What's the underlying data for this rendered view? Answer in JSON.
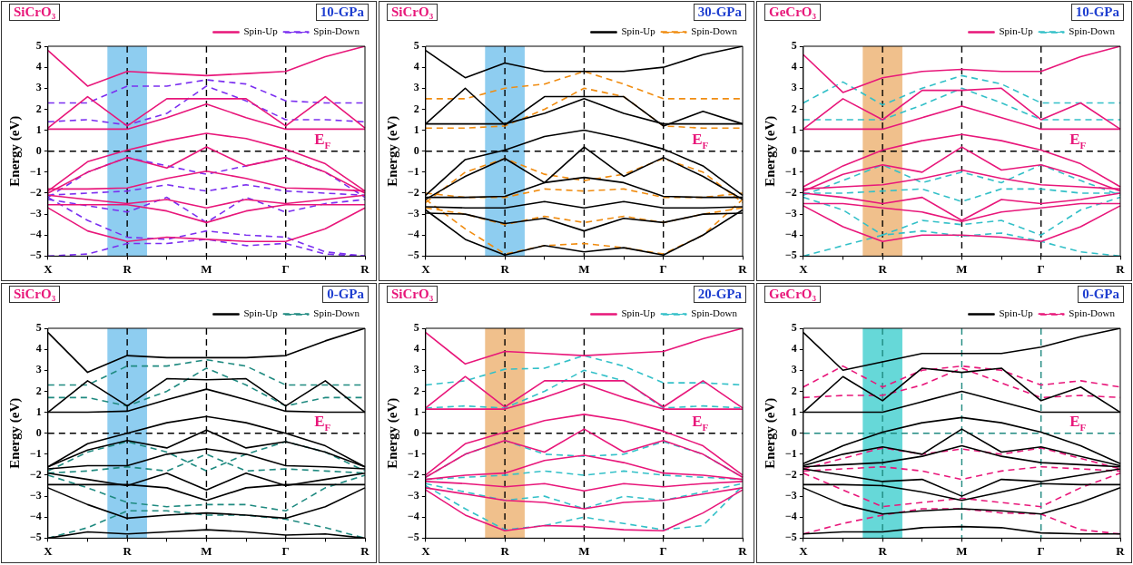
{
  "chart_data": [
    {
      "type": "line",
      "ylabel": "Energy (eV)",
      "categories": [
        "X",
        null,
        "R",
        null,
        "M",
        null,
        "Γ",
        null,
        "R"
      ],
      "ylim": [
        -5,
        5
      ],
      "yticks": [
        -5,
        -4,
        -3,
        -2,
        -1,
        0,
        1,
        2,
        3,
        4,
        5
      ],
      "legend": "top right",
      "annotations": [
        "SiCrO₃",
        "10-GPa",
        "E$_{F}$"
      ],
      "ref_lines": [
        {
          "axis": "y",
          "value": 0,
          "color": "#000000",
          "line_style": "dashed"
        },
        {
          "axis": "x",
          "value": "R",
          "color": "#000000",
          "line_style": "dashed"
        },
        {
          "axis": "x",
          "value": "M",
          "color": "#000000",
          "line_style": "dashed"
        },
        {
          "axis": "x",
          "value": "Γ",
          "color": "#000000",
          "line_style": "dashed"
        }
      ],
      "bands": [
        {
          "axis": "x",
          "from": "R",
          "to": "R",
          "color": "#8ecdf0"
        }
      ],
      "series": [
        {
          "name": "Spin-Up",
          "color": "#e8177a",
          "line_style": "solid",
          "values": [
            1.05,
            1.05,
            1.05,
            1.6,
            2.25,
            1.6,
            1.05,
            1.05,
            1.05
          ]
        },
        {
          "color": "#e8177a",
          "line_style": "solid",
          "values": [
            1.1,
            2.6,
            1.2,
            2.5,
            2.5,
            2.5,
            1.2,
            2.6,
            1.1
          ]
        },
        {
          "color": "#e8177a",
          "line_style": "solid",
          "values": [
            4.8,
            3.1,
            3.8,
            3.7,
            3.6,
            3.7,
            3.8,
            4.5,
            5
          ]
        },
        {
          "color": "#e8177a",
          "line_style": "solid",
          "values": [
            -1.9,
            -0.5,
            0.05,
            0.5,
            0.85,
            0.6,
            0.1,
            -0.6,
            -1.9
          ]
        },
        {
          "color": "#e8177a",
          "line_style": "solid",
          "values": [
            -2,
            -1,
            -0.3,
            -0.8,
            0.2,
            -0.7,
            -0.3,
            -1,
            -2
          ]
        },
        {
          "color": "#e8177a",
          "line_style": "solid",
          "values": [
            -1.8,
            -1.8,
            -1.75,
            -1.3,
            -0.95,
            -1.3,
            -1.75,
            -1.8,
            -1.9
          ]
        },
        {
          "color": "#e8177a",
          "line_style": "solid",
          "values": [
            -2.1,
            -2.3,
            -2.5,
            -2.3,
            -2.7,
            -2.3,
            -2.5,
            -2.3,
            -2.1
          ]
        },
        {
          "color": "#e8177a",
          "line_style": "solid",
          "values": [
            -2.55,
            -2.55,
            -2.55,
            -2.85,
            -3.4,
            -2.85,
            -2.55,
            -2.55,
            -2.55
          ]
        },
        {
          "color": "#e8177a",
          "line_style": "solid",
          "values": [
            -2.7,
            -3.8,
            -4.3,
            -4.1,
            -4.2,
            -4.3,
            -4.3,
            -3.7,
            -2.7
          ]
        },
        {
          "name": "Spin-Down",
          "color": "#7b2ff0",
          "line_style": "dashed",
          "values": [
            1.4,
            1.5,
            1.25,
            1.8,
            3.1,
            2.4,
            1.5,
            1.5,
            1.4
          ]
        },
        {
          "color": "#7b2ff0",
          "line_style": "dashed",
          "values": [
            2.3,
            2.3,
            3.1,
            3.1,
            3.4,
            3.2,
            2.4,
            2.3,
            2.3
          ]
        },
        {
          "color": "#7b2ff0",
          "line_style": "dashed",
          "values": [
            -2.2,
            -1,
            -0.3,
            -0.7,
            -1.1,
            -0.7,
            -0.3,
            -1,
            -2.2
          ]
        },
        {
          "color": "#7b2ff0",
          "line_style": "dashed",
          "values": [
            -2.1,
            -2,
            -1.9,
            -1.6,
            -1.9,
            -1.6,
            -1.9,
            -2,
            -2.1
          ]
        },
        {
          "color": "#7b2ff0",
          "line_style": "dashed",
          "values": [
            -2.3,
            -2.6,
            -2.9,
            -2.2,
            -3.4,
            -2.2,
            -2.9,
            -2.5,
            -2.3
          ]
        },
        {
          "color": "#7b2ff0",
          "line_style": "dashed",
          "values": [
            -2.2,
            -3.3,
            -4.1,
            -4.2,
            -3.8,
            -4,
            -4.1,
            -4.8,
            -5
          ]
        },
        {
          "color": "#7b2ff0",
          "line_style": "dashed",
          "values": [
            -5,
            -4.9,
            -4.4,
            -4.4,
            -4.2,
            -4.5,
            -4.4,
            -4.9,
            -5
          ]
        }
      ]
    },
    {
      "type": "line",
      "ylabel": "Energy (eV)",
      "categories": [
        "X",
        null,
        "R",
        null,
        "M",
        null,
        "Γ",
        null,
        "R"
      ],
      "ylim": [
        -5,
        5
      ],
      "yticks": [
        -5,
        -4,
        -3,
        -2,
        -1,
        0,
        1,
        2,
        3,
        4,
        5
      ],
      "legend": "top right",
      "annotations": [
        "SiCrO₃",
        "30-GPa",
        "E$_{F}$"
      ],
      "ref_lines": [
        {
          "axis": "y",
          "value": 0,
          "color": "#000000",
          "line_style": "dashed"
        },
        {
          "axis": "x",
          "value": "R",
          "color": "#000000",
          "line_style": "dashed"
        },
        {
          "axis": "x",
          "value": "M",
          "color": "#000000",
          "line_style": "dashed"
        },
        {
          "axis": "x",
          "value": "Γ",
          "color": "#000000",
          "line_style": "dashed"
        }
      ],
      "bands": [
        {
          "axis": "x",
          "from": "R",
          "to": "R",
          "color": "#8ecdf0"
        }
      ],
      "series": [
        {
          "name": "Spin-Up",
          "color": "#000000",
          "line_style": "solid",
          "values": [
            1.3,
            1.3,
            1.3,
            1.8,
            2.5,
            1.8,
            1.3,
            1.3,
            1.3
          ]
        },
        {
          "color": "#000000",
          "line_style": "solid",
          "values": [
            1.3,
            3,
            1.25,
            2.6,
            2.6,
            2.6,
            1.2,
            1.9,
            1.3
          ]
        },
        {
          "color": "#000000",
          "line_style": "solid",
          "values": [
            4.8,
            3.5,
            4.2,
            3.8,
            3.8,
            3.8,
            4,
            4.6,
            5
          ]
        },
        {
          "color": "#000000",
          "line_style": "solid",
          "values": [
            -2.1,
            -0.4,
            0.05,
            0.7,
            1,
            0.6,
            0.1,
            -0.7,
            -2.1
          ]
        },
        {
          "color": "#000000",
          "line_style": "solid",
          "values": [
            -2.3,
            -1.2,
            -0.35,
            -1.5,
            0.2,
            -1.2,
            -0.3,
            -1.2,
            -2.3
          ]
        },
        {
          "color": "#000000",
          "line_style": "solid",
          "values": [
            -2.2,
            -2.2,
            -2.15,
            -1.5,
            -1.25,
            -1.5,
            -2.15,
            -2.2,
            -2.2
          ]
        },
        {
          "color": "#000000",
          "line_style": "solid",
          "values": [
            -2.65,
            -2.7,
            -2.7,
            -2.4,
            -2.7,
            -2.4,
            -2.7,
            -2.7,
            -2.65
          ]
        },
        {
          "color": "#000000",
          "line_style": "solid",
          "values": [
            -2.95,
            -3,
            -3.45,
            -3.2,
            -3.8,
            -3.2,
            -3.4,
            -3,
            -2.95
          ]
        },
        {
          "color": "#000000",
          "line_style": "solid",
          "values": [
            -2.8,
            -4.2,
            -4.95,
            -4.5,
            -4.8,
            -4.6,
            -4.95,
            -4,
            -2.8
          ]
        },
        {
          "name": "Spin-Down",
          "color": "#f08c10",
          "line_style": "dashed",
          "values": [
            1.1,
            1.1,
            1.2,
            2,
            3,
            2.6,
            1.2,
            1.1,
            1.1
          ]
        },
        {
          "color": "#f08c10",
          "line_style": "dashed",
          "values": [
            2.5,
            2.5,
            3,
            3.2,
            3.8,
            3.2,
            2.5,
            2.5,
            2.5
          ]
        },
        {
          "color": "#f08c10",
          "line_style": "dashed",
          "values": [
            -2.45,
            -1,
            -0.35,
            -1.1,
            -1.4,
            -1.1,
            -0.35,
            -1,
            -2.45
          ]
        },
        {
          "color": "#f08c10",
          "line_style": "dashed",
          "values": [
            -2,
            -2.2,
            -2.2,
            -1.8,
            -1.9,
            -1.8,
            -2.2,
            -2.2,
            -2
          ]
        },
        {
          "color": "#f08c10",
          "line_style": "dashed",
          "values": [
            -2.7,
            -3,
            -3.5,
            -3.1,
            -3.4,
            -3.1,
            -3.4,
            -3,
            -2.7
          ]
        },
        {
          "color": "#f08c10",
          "line_style": "dashed",
          "values": [
            -2.3,
            -3.7,
            -4.9,
            -4.5,
            -4.4,
            -4.6,
            -4.9,
            -4,
            -2.3
          ]
        }
      ]
    },
    {
      "type": "line",
      "ylabel": "Energy (eV)",
      "categories": [
        "X",
        null,
        "R",
        null,
        "M",
        null,
        "Γ",
        null,
        "R"
      ],
      "ylim": [
        -5,
        5
      ],
      "yticks": [
        -5,
        -4,
        -3,
        -2,
        -1,
        0,
        1,
        2,
        3,
        4,
        5
      ],
      "legend": "top right",
      "annotations": [
        "GeCrO₃",
        "10-GPa",
        "E$_{F}$"
      ],
      "ref_lines": [
        {
          "axis": "y",
          "value": 0,
          "color": "#000000",
          "line_style": "dashed"
        },
        {
          "axis": "x",
          "value": "R",
          "color": "#000000",
          "line_style": "dashed"
        },
        {
          "axis": "x",
          "value": "M",
          "color": "#000000",
          "line_style": "dashed"
        },
        {
          "axis": "x",
          "value": "Γ",
          "color": "#000000",
          "line_style": "dashed"
        }
      ],
      "bands": [
        {
          "axis": "x",
          "from": "R",
          "to": "R",
          "color": "#f0c08c"
        }
      ],
      "series": [
        {
          "name": "Spin-Up",
          "color": "#e8177a",
          "line_style": "solid",
          "values": [
            1.05,
            1.05,
            1.05,
            1.6,
            2.15,
            1.6,
            1.05,
            1.05,
            1.05
          ]
        },
        {
          "color": "#e8177a",
          "line_style": "solid",
          "values": [
            1.05,
            2.5,
            1.5,
            2.9,
            2.9,
            3,
            1.5,
            2.3,
            1.05
          ]
        },
        {
          "color": "#e8177a",
          "line_style": "solid",
          "values": [
            4.6,
            2.8,
            3.5,
            3.8,
            3.9,
            3.8,
            3.8,
            4.5,
            5
          ]
        },
        {
          "color": "#e8177a",
          "line_style": "solid",
          "values": [
            -1.7,
            -0.7,
            0.05,
            0.5,
            0.8,
            0.5,
            0.05,
            -0.6,
            -1.7
          ]
        },
        {
          "color": "#e8177a",
          "line_style": "solid",
          "values": [
            -1.9,
            -1.1,
            -0.65,
            -1,
            0.2,
            -0.9,
            -0.65,
            -1.2,
            -1.9
          ]
        },
        {
          "color": "#e8177a",
          "line_style": "solid",
          "values": [
            -1.8,
            -1.7,
            -1.6,
            -1.3,
            -0.9,
            -1.3,
            -1.6,
            -1.7,
            -1.8
          ]
        },
        {
          "color": "#e8177a",
          "line_style": "solid",
          "values": [
            -2,
            -2.2,
            -2.5,
            -2.2,
            -3.3,
            -2.3,
            -2.5,
            -2.3,
            -2
          ]
        },
        {
          "color": "#e8177a",
          "line_style": "solid",
          "values": [
            -2.5,
            -2.5,
            -2.7,
            -2.9,
            -3.35,
            -2.9,
            -2.7,
            -2.5,
            -2.5
          ]
        },
        {
          "color": "#e8177a",
          "line_style": "solid",
          "values": [
            -2.6,
            -3.6,
            -4.3,
            -4,
            -4,
            -4.1,
            -4.3,
            -3.6,
            -2.6
          ]
        },
        {
          "name": "Spin-Down",
          "color": "#33c0c8",
          "line_style": "dashed",
          "values": [
            1.5,
            1.5,
            1.5,
            2.2,
            3,
            2.3,
            1.5,
            1.5,
            1.5
          ]
        },
        {
          "color": "#33c0c8",
          "line_style": "dashed",
          "values": [
            2.3,
            3.3,
            2.2,
            3,
            3.6,
            3.2,
            2.3,
            2.3,
            2.3
          ]
        },
        {
          "color": "#33c0c8",
          "line_style": "dashed",
          "values": [
            -2.1,
            -1.4,
            -0.65,
            -1.5,
            -1,
            -1.5,
            -0.65,
            -1.4,
            -2.1
          ]
        },
        {
          "color": "#33c0c8",
          "line_style": "dashed",
          "values": [
            -2,
            -2,
            -1.9,
            -1.8,
            -2.4,
            -1.8,
            -1.8,
            -2,
            -2
          ]
        },
        {
          "color": "#33c0c8",
          "line_style": "dashed",
          "values": [
            -2.2,
            -2.8,
            -4,
            -3.3,
            -3.5,
            -3.3,
            -4,
            -2.8,
            -2.2
          ]
        },
        {
          "color": "#33c0c8",
          "line_style": "dashed",
          "values": [
            -5,
            -4.5,
            -4,
            -3.8,
            -4.05,
            -3.9,
            -4.3,
            -4.8,
            -5
          ]
        }
      ]
    },
    {
      "type": "line",
      "ylabel": "Energy (eV)",
      "categories": [
        "X",
        null,
        "R",
        null,
        "M",
        null,
        "Γ",
        null,
        "R"
      ],
      "ylim": [
        -5,
        5
      ],
      "yticks": [
        -5,
        -4,
        -3,
        -2,
        -1,
        0,
        1,
        2,
        3,
        4,
        5
      ],
      "legend": "top right",
      "annotations": [
        "SiCrO₃",
        "0-GPa",
        "E$_{F}$"
      ],
      "ref_lines": [
        {
          "axis": "y",
          "value": 0,
          "color": "#000000",
          "line_style": "dashed"
        },
        {
          "axis": "x",
          "value": "R",
          "color": "#000000",
          "line_style": "dashed"
        },
        {
          "axis": "x",
          "value": "M",
          "color": "#000000",
          "line_style": "dashed"
        },
        {
          "axis": "x",
          "value": "Γ",
          "color": "#000000",
          "line_style": "dashed"
        }
      ],
      "bands": [
        {
          "axis": "x",
          "from": "R",
          "to": "R",
          "color": "#8ecdf0"
        }
      ],
      "series": [
        {
          "name": "Spin-Up",
          "color": "#000000",
          "line_style": "solid",
          "values": [
            1,
            1,
            1.05,
            1.6,
            2.1,
            1.6,
            1.05,
            1,
            1
          ]
        },
        {
          "color": "#000000",
          "line_style": "solid",
          "values": [
            1,
            2.5,
            1.3,
            2.6,
            2.55,
            2.6,
            1.3,
            2.5,
            1
          ]
        },
        {
          "color": "#000000",
          "line_style": "solid",
          "values": [
            4.8,
            2.9,
            3.7,
            3.6,
            3.6,
            3.6,
            3.7,
            4.4,
            5
          ]
        },
        {
          "color": "#000000",
          "line_style": "solid",
          "values": [
            -1.6,
            -0.5,
            0,
            0.5,
            0.8,
            0.5,
            0,
            -0.6,
            -1.6
          ]
        },
        {
          "color": "#000000",
          "line_style": "solid",
          "values": [
            -1.6,
            -0.8,
            -0.35,
            -0.7,
            0.15,
            -0.7,
            -0.4,
            -0.9,
            -1.6
          ]
        },
        {
          "color": "#000000",
          "line_style": "solid",
          "values": [
            -1.7,
            -1.55,
            -1.55,
            -1,
            -0.75,
            -1,
            -1.55,
            -1.6,
            -1.7
          ]
        },
        {
          "color": "#000000",
          "line_style": "solid",
          "values": [
            -1.9,
            -2.2,
            -2.5,
            -1.9,
            -2.7,
            -1.9,
            -2.5,
            -2.2,
            -1.9
          ]
        },
        {
          "color": "#000000",
          "line_style": "solid",
          "values": [
            -2.45,
            -2.45,
            -2.45,
            -2.6,
            -3.2,
            -2.6,
            -2.45,
            -2.45,
            -2.45
          ]
        },
        {
          "color": "#000000",
          "line_style": "solid",
          "values": [
            -2.6,
            -3.4,
            -4.05,
            -3.9,
            -3.8,
            -3.9,
            -4.05,
            -3.5,
            -2.6
          ]
        },
        {
          "color": "#000000",
          "line_style": "solid",
          "values": [
            -5,
            -4.7,
            -4.8,
            -4.7,
            -4.6,
            -4.7,
            -4.85,
            -4.8,
            -5
          ]
        },
        {
          "name": "Spin-Down",
          "color": "#1f8a80",
          "line_style": "dashed",
          "values": [
            1.7,
            1.7,
            1.3,
            2,
            3.1,
            2.3,
            1.3,
            1.7,
            1.7
          ]
        },
        {
          "color": "#1f8a80",
          "line_style": "dashed",
          "values": [
            2.3,
            2.3,
            3.2,
            3.2,
            3.5,
            3.2,
            2.3,
            2.3,
            2.3
          ]
        },
        {
          "color": "#1f8a80",
          "line_style": "dashed",
          "values": [
            -1.8,
            -0.9,
            -0.4,
            -0.9,
            -1.8,
            -1,
            -0.4,
            -0.9,
            -1.8
          ]
        },
        {
          "color": "#1f8a80",
          "line_style": "dashed",
          "values": [
            -1.9,
            -1.8,
            -1.6,
            -1.8,
            -1,
            -1.8,
            -1.7,
            -1.8,
            -1.9
          ]
        },
        {
          "color": "#1f8a80",
          "line_style": "dashed",
          "values": [
            -2,
            -2.6,
            -3.3,
            -3.5,
            -3.4,
            -3.4,
            -3.7,
            -2.6,
            -2
          ]
        },
        {
          "color": "#1f8a80",
          "line_style": "dashed",
          "values": [
            -5,
            -4.5,
            -3.7,
            -3.7,
            -3.9,
            -3.9,
            -4.1,
            -4.5,
            -5
          ]
        }
      ]
    },
    {
      "type": "line",
      "ylabel": "Energy (eV)",
      "categories": [
        "X",
        null,
        "R",
        null,
        "M",
        null,
        "Γ",
        null,
        "R"
      ],
      "ylim": [
        -5,
        5
      ],
      "yticks": [
        -5,
        -4,
        -3,
        -2,
        -1,
        0,
        1,
        2,
        3,
        4,
        5
      ],
      "legend": "top right",
      "annotations": [
        "SiCrO₃",
        "20-GPa",
        "E$_{F}$"
      ],
      "ref_lines": [
        {
          "axis": "y",
          "value": 0,
          "color": "#000000",
          "line_style": "dashed"
        },
        {
          "axis": "x",
          "value": "R",
          "color": "#000000",
          "line_style": "dashed"
        },
        {
          "axis": "x",
          "value": "M",
          "color": "#000000",
          "line_style": "dashed"
        },
        {
          "axis": "x",
          "value": "Γ",
          "color": "#000000",
          "line_style": "dashed"
        }
      ],
      "bands": [
        {
          "axis": "x",
          "from": "R",
          "to": "R",
          "color": "#f0c08c"
        }
      ],
      "series": [
        {
          "name": "Spin-Up",
          "color": "#e8177a",
          "line_style": "solid",
          "values": [
            1.15,
            1.15,
            1.15,
            1.7,
            2.35,
            1.7,
            1.15,
            1.15,
            1.15
          ]
        },
        {
          "color": "#e8177a",
          "line_style": "solid",
          "values": [
            1.2,
            2.7,
            1.25,
            2.5,
            2.5,
            2.5,
            1.25,
            2.5,
            1.2
          ]
        },
        {
          "color": "#e8177a",
          "line_style": "solid",
          "values": [
            4.8,
            3.3,
            3.9,
            3.8,
            3.7,
            3.8,
            3.9,
            4.5,
            5
          ]
        },
        {
          "color": "#e8177a",
          "line_style": "solid",
          "values": [
            -2,
            -0.5,
            0.05,
            0.6,
            0.9,
            0.6,
            0.1,
            -0.6,
            -2
          ]
        },
        {
          "color": "#e8177a",
          "line_style": "solid",
          "values": [
            -2.1,
            -1,
            -0.35,
            -0.9,
            0.2,
            -0.9,
            -0.35,
            -1,
            -2.1
          ]
        },
        {
          "color": "#e8177a",
          "line_style": "solid",
          "values": [
            -2.2,
            -2,
            -1.9,
            -1.3,
            -1.05,
            -1.4,
            -1.9,
            -2,
            -2.2
          ]
        },
        {
          "color": "#e8177a",
          "line_style": "solid",
          "values": [
            -2.3,
            -2.4,
            -2.55,
            -2.4,
            -2.75,
            -2.4,
            -2.55,
            -2.4,
            -2.3
          ]
        },
        {
          "color": "#e8177a",
          "line_style": "solid",
          "values": [
            -2.6,
            -2.9,
            -3.2,
            -3.3,
            -3.6,
            -3.3,
            -3.2,
            -2.9,
            -2.6
          ]
        },
        {
          "color": "#e8177a",
          "line_style": "solid",
          "values": [
            -2.7,
            -3.9,
            -4.65,
            -4.4,
            -4.45,
            -4.6,
            -4.65,
            -3.8,
            -2.7
          ]
        },
        {
          "name": "Spin-Down",
          "color": "#33c0c8",
          "line_style": "dashed",
          "values": [
            1.2,
            1.3,
            1.2,
            2,
            3,
            2.5,
            1.2,
            1.3,
            1.2
          ]
        },
        {
          "color": "#33c0c8",
          "line_style": "dashed",
          "values": [
            2.3,
            2.5,
            3.05,
            3.1,
            3.7,
            3.2,
            2.4,
            2.4,
            2.3
          ]
        },
        {
          "color": "#33c0c8",
          "line_style": "dashed",
          "values": [
            -2.1,
            -1,
            -0.35,
            -1,
            -1.1,
            -1,
            -0.4,
            -1,
            -2.1
          ]
        },
        {
          "color": "#33c0c8",
          "line_style": "dashed",
          "values": [
            -2.2,
            -2.1,
            -2,
            -1.8,
            -2,
            -1.8,
            -2,
            -2.1,
            -2.2
          ]
        },
        {
          "color": "#33c0c8",
          "line_style": "dashed",
          "values": [
            -2.4,
            -2.8,
            -3.2,
            -3,
            -3.6,
            -3,
            -3.2,
            -2.8,
            -2.4
          ]
        },
        {
          "color": "#33c0c8",
          "line_style": "dashed",
          "values": [
            -2.5,
            -3.6,
            -4.6,
            -4.4,
            -4,
            -4.3,
            -4.6,
            -4.4,
            -2.5
          ]
        }
      ]
    },
    {
      "type": "line",
      "ylabel": "Energy (eV)",
      "categories": [
        "X",
        null,
        "R",
        null,
        "M",
        null,
        "Γ",
        null,
        "R"
      ],
      "ylim": [
        -5,
        5
      ],
      "yticks": [
        -5,
        -4,
        -3,
        -2,
        -1,
        0,
        1,
        2,
        3,
        4,
        5
      ],
      "legend": "top right",
      "annotations": [
        "GeCrO₃",
        "0-GPa",
        "E$_{F}$"
      ],
      "ref_lines": [
        {
          "axis": "y",
          "value": 0,
          "color": "#1f8a80",
          "line_style": "dashed"
        },
        {
          "axis": "x",
          "value": "R",
          "color": "#1f8a80",
          "line_style": "dashed"
        },
        {
          "axis": "x",
          "value": "M",
          "color": "#1f8a80",
          "line_style": "dashed"
        },
        {
          "axis": "x",
          "value": "Γ",
          "color": "#1f8a80",
          "line_style": "dashed"
        }
      ],
      "bands": [
        {
          "axis": "x",
          "from": "R",
          "to": "R",
          "color": "#66d8d8"
        }
      ],
      "series": [
        {
          "name": "Spin-Up",
          "color": "#000000",
          "line_style": "solid",
          "values": [
            1,
            1,
            1,
            1.5,
            2,
            1.5,
            1,
            1,
            1
          ]
        },
        {
          "color": "#000000",
          "line_style": "solid",
          "values": [
            1,
            2.7,
            1.55,
            3.1,
            2.9,
            3.1,
            1.55,
            2.2,
            1
          ]
        },
        {
          "color": "#000000",
          "line_style": "solid",
          "values": [
            4.8,
            3,
            3.4,
            3.8,
            3.8,
            3.8,
            4.1,
            4.6,
            5
          ]
        },
        {
          "color": "#000000",
          "line_style": "solid",
          "values": [
            -1.45,
            -0.6,
            0.05,
            0.5,
            0.75,
            0.5,
            0.05,
            -0.6,
            -1.45
          ]
        },
        {
          "color": "#000000",
          "line_style": "solid",
          "values": [
            -1.55,
            -1,
            -0.65,
            -1,
            0.2,
            -0.9,
            -0.65,
            -1.1,
            -1.55
          ]
        },
        {
          "color": "#000000",
          "line_style": "solid",
          "values": [
            -1.6,
            -1.5,
            -1.4,
            -1.1,
            -0.6,
            -1.1,
            -1.4,
            -1.5,
            -1.6
          ]
        },
        {
          "color": "#000000",
          "line_style": "solid",
          "values": [
            -1.7,
            -2,
            -2.3,
            -2.2,
            -3,
            -2.2,
            -2.3,
            -2,
            -1.7
          ]
        },
        {
          "color": "#000000",
          "line_style": "solid",
          "values": [
            -2.45,
            -2.45,
            -2.5,
            -2.8,
            -3.2,
            -2.8,
            -2.4,
            -2.45,
            -2.45
          ]
        },
        {
          "color": "#000000",
          "line_style": "solid",
          "values": [
            -2.6,
            -3.4,
            -3.85,
            -3.7,
            -3.6,
            -3.7,
            -3.85,
            -3.3,
            -2.6
          ]
        },
        {
          "color": "#000000",
          "line_style": "solid",
          "values": [
            -4.8,
            -4.7,
            -4.7,
            -4.5,
            -4.45,
            -4.5,
            -4.75,
            -4.8,
            -4.8
          ]
        },
        {
          "name": "Spin-Down",
          "color": "#e8177a",
          "line_style": "dashed",
          "values": [
            1.7,
            1.8,
            1.8,
            2.3,
            3.1,
            2.4,
            1.7,
            1.8,
            1.7
          ]
        },
        {
          "color": "#e8177a",
          "line_style": "dashed",
          "values": [
            2.2,
            3.2,
            2.2,
            3,
            3.2,
            3,
            2.3,
            2.5,
            2.2
          ]
        },
        {
          "color": "#e8177a",
          "line_style": "dashed",
          "values": [
            -1.7,
            -1.2,
            -0.7,
            -1,
            -0.75,
            -1,
            -0.7,
            -1.2,
            -1.7
          ]
        },
        {
          "color": "#e8177a",
          "line_style": "dashed",
          "values": [
            -1.8,
            -1.7,
            -1.6,
            -1.8,
            -2.2,
            -1.8,
            -1.6,
            -1.7,
            -1.8
          ]
        },
        {
          "color": "#e8177a",
          "line_style": "dashed",
          "values": [
            -1.9,
            -2.7,
            -3.5,
            -3.3,
            -3.1,
            -3.3,
            -3.5,
            -2.6,
            -1.9
          ]
        },
        {
          "color": "#e8177a",
          "line_style": "dashed",
          "values": [
            -4.8,
            -4.3,
            -3.9,
            -3.6,
            -3.6,
            -3.8,
            -3.85,
            -4.6,
            -4.8
          ]
        }
      ]
    }
  ]
}
